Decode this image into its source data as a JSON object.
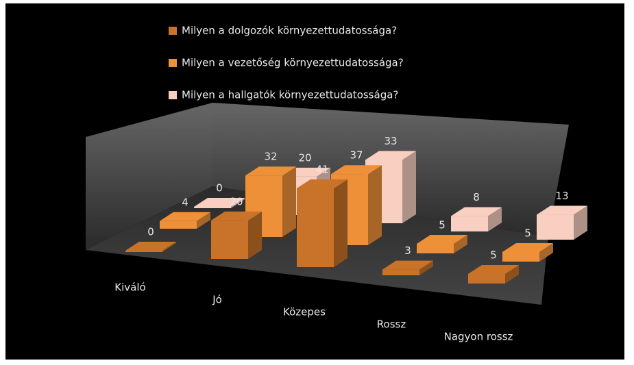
{
  "chart_data": {
    "type": "bar3d",
    "categories": [
      "Kiváló",
      "Jó",
      "Közepes",
      "Rossz",
      "Nagyon rossz"
    ],
    "series": [
      {
        "name": "Milyen a dolgozók környezettudatossága?",
        "color": "#c8722a",
        "values": [
          0,
          20,
          41,
          3,
          5
        ]
      },
      {
        "name": "Milyen a vezetőség környezettudatossága?",
        "color": "#ee9038",
        "values": [
          4,
          32,
          37,
          5,
          5
        ]
      },
      {
        "name": "Milyen a hallgatók környezettudatossága?",
        "color": "#f8cfc0",
        "values": [
          0,
          20,
          33,
          8,
          13
        ]
      }
    ]
  }
}
